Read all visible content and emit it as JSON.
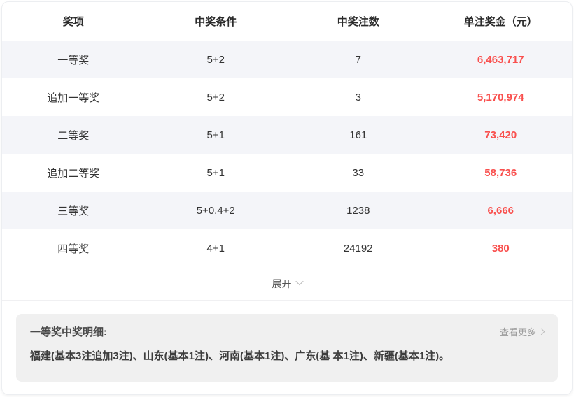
{
  "table": {
    "headers": [
      "奖项",
      "中奖条件",
      "中奖注数",
      "单注奖金（元）"
    ],
    "rows": [
      {
        "prize": "一等奖",
        "condition": "5+2",
        "count": "7",
        "amount": "6,463,717"
      },
      {
        "prize": "追加一等奖",
        "condition": "5+2",
        "count": "3",
        "amount": "5,170,974"
      },
      {
        "prize": "二等奖",
        "condition": "5+1",
        "count": "161",
        "amount": "73,420"
      },
      {
        "prize": "追加二等奖",
        "condition": "5+1",
        "count": "33",
        "amount": "58,736"
      },
      {
        "prize": "三等奖",
        "condition": "5+0,4+2",
        "count": "1238",
        "amount": "6,666"
      },
      {
        "prize": "四等奖",
        "condition": "4+1",
        "count": "24192",
        "amount": "380"
      }
    ]
  },
  "expand": {
    "label": "展开",
    "icon": "chevron-down"
  },
  "detail": {
    "title": "一等奖中奖明细:",
    "view_more_label": "查看更多",
    "view_more_icon": "chevron-right",
    "body": "福建(基本3注追加3注)、山东(基本1注)、河南(基本1注)、广东(基 本1注)、新疆(基本1注)。"
  },
  "colors": {
    "amount_red": "#f9504e",
    "stripe_bg": "#f4f5f9",
    "panel_bg": "#f0f0f0"
  }
}
